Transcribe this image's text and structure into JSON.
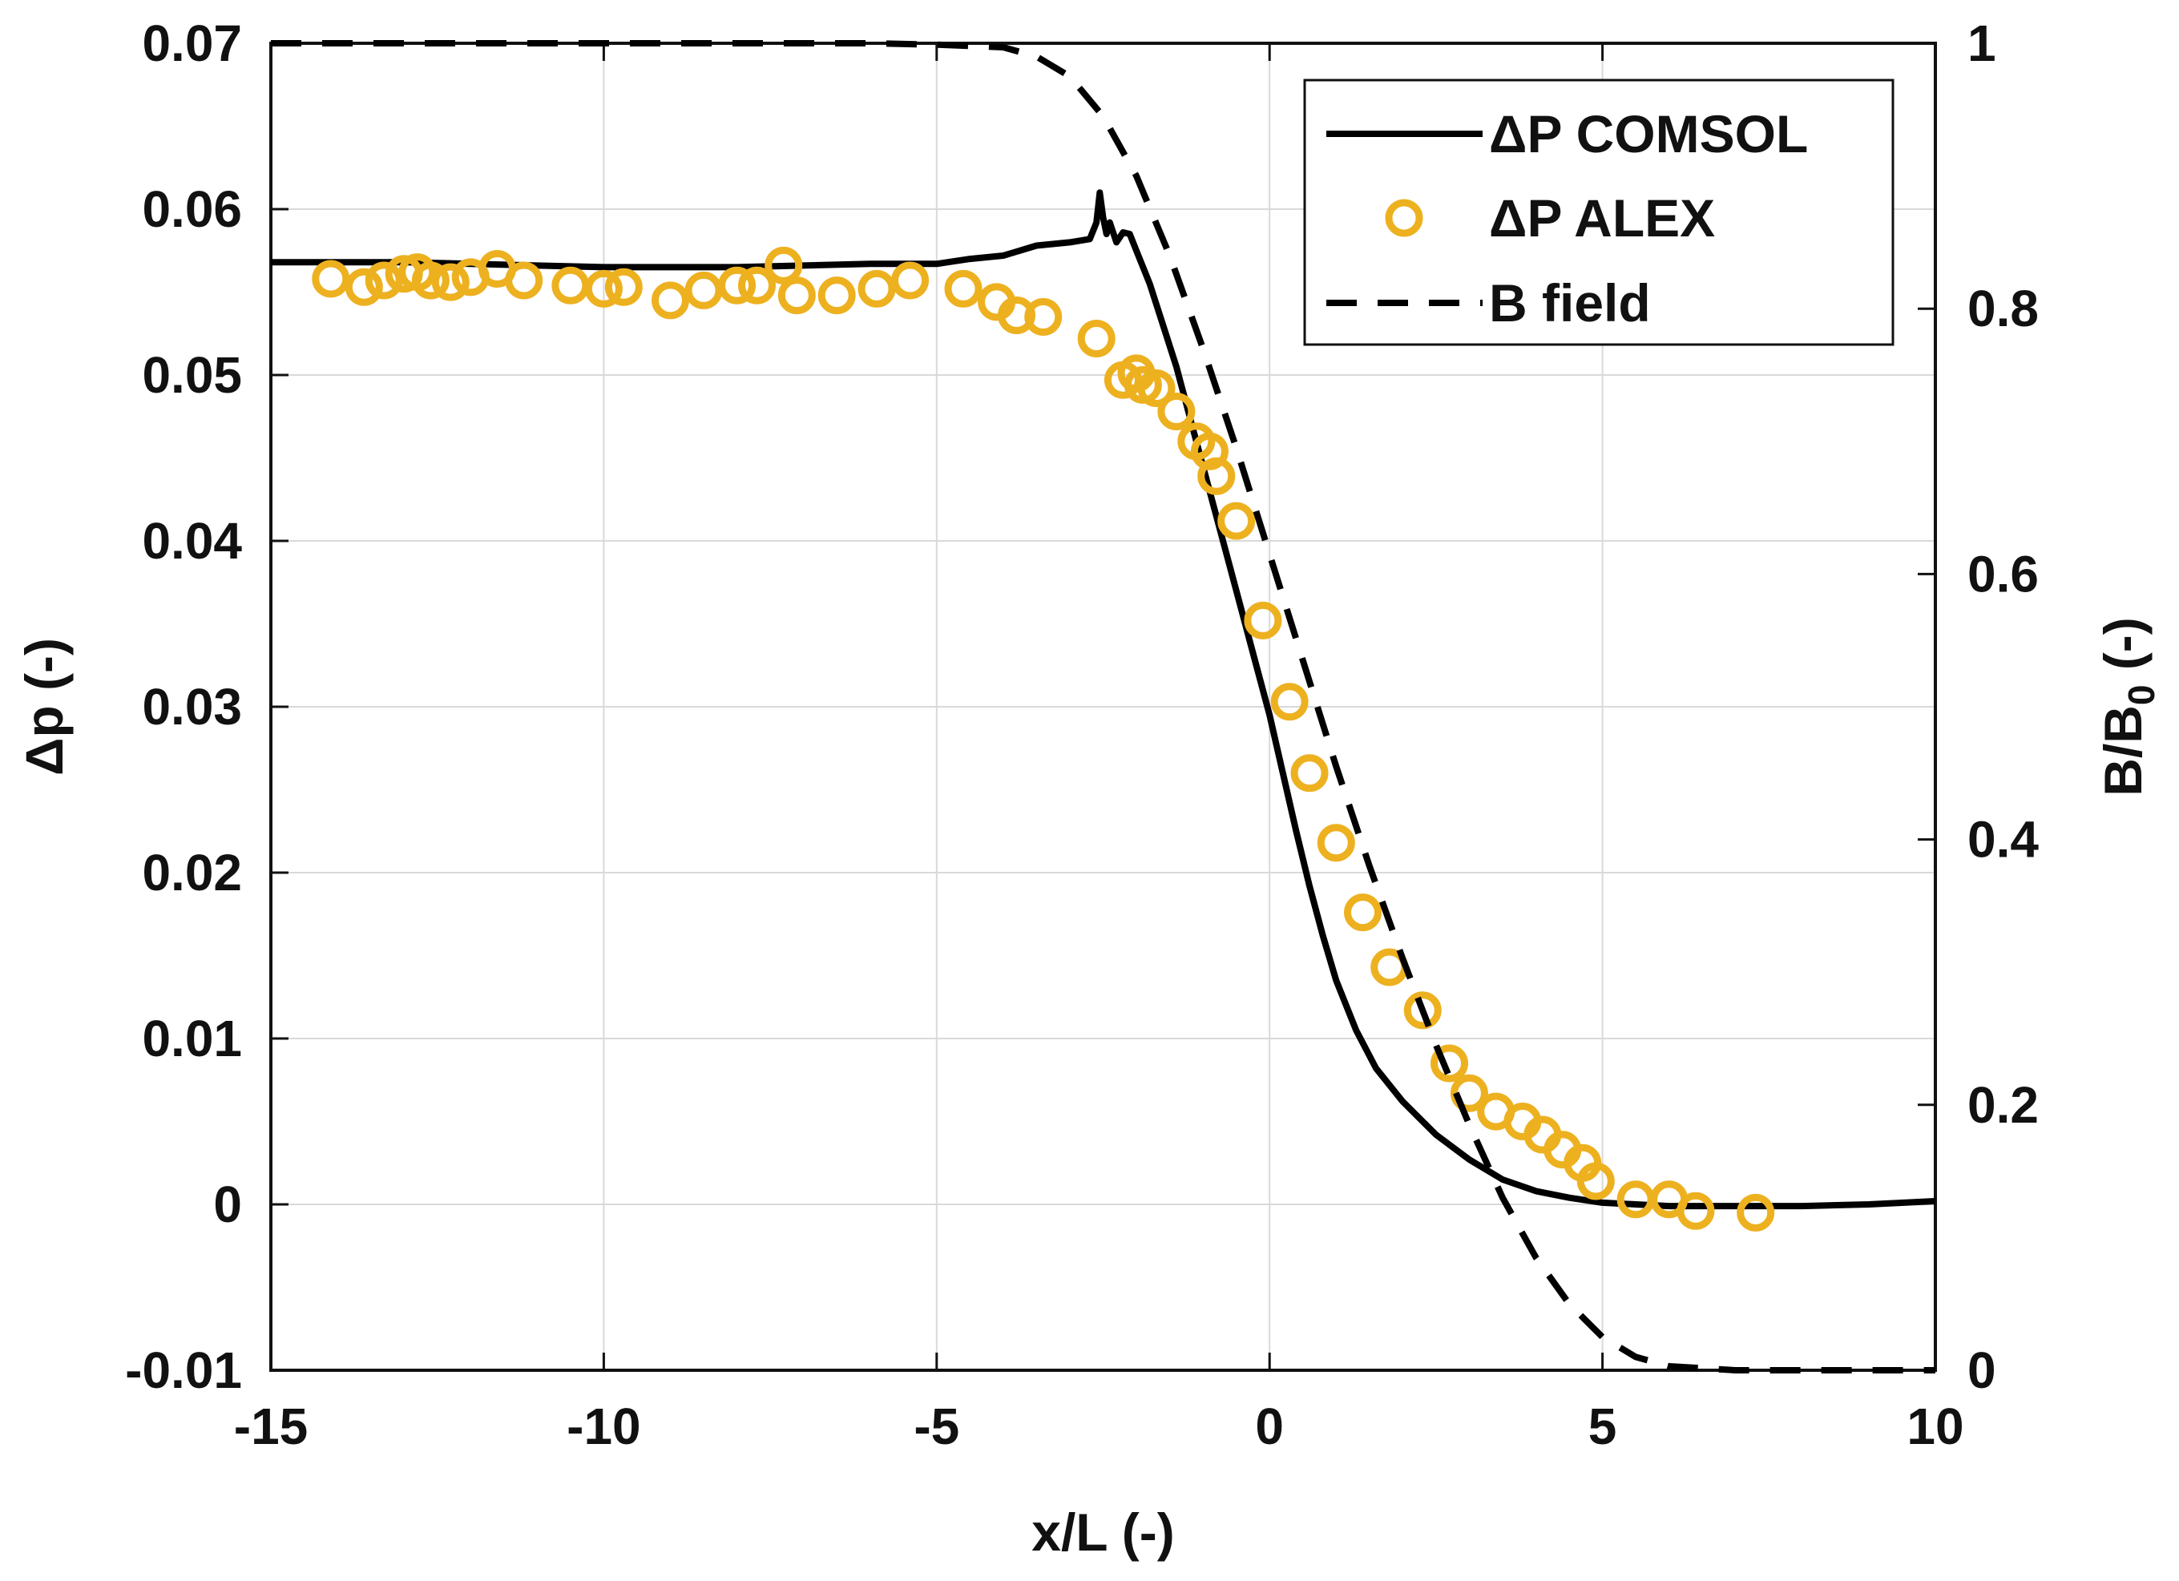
{
  "chart_data": {
    "type": "line",
    "title": "",
    "xlabel": "x/L (-)",
    "ylabel_left": "Δp (-)",
    "ylabel_right_main": "B/B",
    "ylabel_right_sub": "0",
    "ylabel_right_suffix": " (-)",
    "xlim": [
      -15,
      10
    ],
    "ylim_left": [
      -0.01,
      0.07
    ],
    "ylim_right": [
      0,
      1
    ],
    "grid": true,
    "legend_position": "top-right",
    "x_ticks": [
      -15,
      -10,
      -5,
      0,
      5,
      10
    ],
    "x_tick_labels": [
      "-15",
      "-10",
      "-5",
      "0",
      "5",
      "10"
    ],
    "y_left_ticks": [
      -0.01,
      0,
      0.01,
      0.02,
      0.03,
      0.04,
      0.05,
      0.06,
      0.07
    ],
    "y_left_tick_labels": [
      "-0.01",
      "0",
      "0.01",
      "0.02",
      "0.03",
      "0.04",
      "0.05",
      "0.06",
      "0.07"
    ],
    "y_right_ticks": [
      0,
      0.2,
      0.4,
      0.6,
      0.8,
      1
    ],
    "y_right_tick_labels": [
      "0",
      "0.2",
      "0.4",
      "0.6",
      "0.8",
      "1"
    ],
    "colors": {
      "comsol": "#000000",
      "alex": "#EDB120",
      "bfield": "#000000",
      "grid": "#d9d9d9"
    },
    "series": [
      {
        "name": "ΔP COMSOL",
        "axis": "left",
        "style": "solid",
        "x": [
          -15,
          -13,
          -11,
          -10,
          -8,
          -6,
          -5,
          -4.5,
          -4,
          -3.5,
          -3,
          -2.7,
          -2.6,
          -2.55,
          -2.5,
          -2.45,
          -2.4,
          -2.3,
          -2.2,
          -2.1,
          -2.0,
          -1.8,
          -1.6,
          -1.4,
          -1.2,
          -1.0,
          -0.8,
          -0.6,
          -0.4,
          -0.2,
          0,
          0.2,
          0.4,
          0.6,
          0.8,
          1.0,
          1.3,
          1.6,
          2.0,
          2.5,
          3.0,
          3.5,
          4.0,
          4.5,
          5.0,
          5.5,
          6.0,
          7.0,
          8.0,
          9.0,
          10.0
        ],
        "y": [
          0.0568,
          0.0568,
          0.0566,
          0.0565,
          0.0565,
          0.0567,
          0.0567,
          0.057,
          0.0572,
          0.0578,
          0.058,
          0.0582,
          0.0592,
          0.061,
          0.0595,
          0.0585,
          0.0592,
          0.058,
          0.0586,
          0.0585,
          0.0575,
          0.0555,
          0.053,
          0.0505,
          0.0475,
          0.0445,
          0.0415,
          0.0385,
          0.0355,
          0.0325,
          0.0295,
          0.026,
          0.0225,
          0.0192,
          0.0162,
          0.0135,
          0.0105,
          0.0082,
          0.0062,
          0.0042,
          0.0027,
          0.0015,
          0.0008,
          0.0004,
          0.0001,
          0.0,
          -0.0001,
          -0.0001,
          -0.0001,
          0.0,
          0.0002
        ]
      },
      {
        "name": "ΔP ALEX",
        "axis": "left",
        "style": "circle",
        "x": [
          -14.1,
          -13.6,
          -13.3,
          -13.0,
          -12.8,
          -12.6,
          -12.3,
          -12.0,
          -11.6,
          -11.2,
          -10.5,
          -10.0,
          -9.7,
          -9.0,
          -8.5,
          -8.0,
          -7.7,
          -7.3,
          -7.1,
          -6.5,
          -5.9,
          -5.4,
          -4.6,
          -4.1,
          -3.8,
          -3.4,
          -2.6,
          -2.2,
          -2.0,
          -1.9,
          -1.7,
          -1.4,
          -1.1,
          -0.9,
          -0.8,
          -0.5,
          -0.1,
          0.3,
          0.6,
          1.0,
          1.4,
          1.8,
          2.3,
          2.7,
          3.0,
          3.4,
          3.8,
          4.1,
          4.4,
          4.7,
          4.9,
          5.5,
          6.0,
          6.4,
          7.3
        ],
        "y": [
          0.0558,
          0.0553,
          0.0557,
          0.0561,
          0.0562,
          0.0557,
          0.0556,
          0.0559,
          0.0564,
          0.0557,
          0.0554,
          0.0552,
          0.0553,
          0.0545,
          0.0551,
          0.0554,
          0.0554,
          0.0566,
          0.0548,
          0.0548,
          0.0552,
          0.0557,
          0.0552,
          0.0544,
          0.0536,
          0.0535,
          0.0522,
          0.0497,
          0.0501,
          0.0494,
          0.0492,
          0.0478,
          0.046,
          0.0454,
          0.0439,
          0.0412,
          0.0352,
          0.0303,
          0.026,
          0.0218,
          0.0176,
          0.0143,
          0.0117,
          0.0085,
          0.0067,
          0.0056,
          0.005,
          0.0042,
          0.0033,
          0.0025,
          0.0014,
          0.0003,
          0.0003,
          -0.0004,
          -0.0005
        ]
      },
      {
        "name": "B field",
        "axis": "right",
        "style": "dashed",
        "x": [
          -15,
          -6,
          -5,
          -4,
          -3.5,
          -3,
          -2.5,
          -2,
          -1.5,
          -1,
          -0.5,
          0,
          0.5,
          1,
          1.5,
          2,
          2.5,
          3,
          3.5,
          4,
          4.5,
          5,
          5.5,
          6,
          7,
          8,
          10
        ],
        "y": [
          1.0,
          1.0,
          0.999,
          0.997,
          0.99,
          0.975,
          0.945,
          0.9,
          0.84,
          0.77,
          0.695,
          0.615,
          0.535,
          0.455,
          0.38,
          0.31,
          0.245,
          0.185,
          0.13,
          0.085,
          0.05,
          0.025,
          0.01,
          0.003,
          0.0,
          0.0,
          0.0
        ]
      }
    ]
  }
}
